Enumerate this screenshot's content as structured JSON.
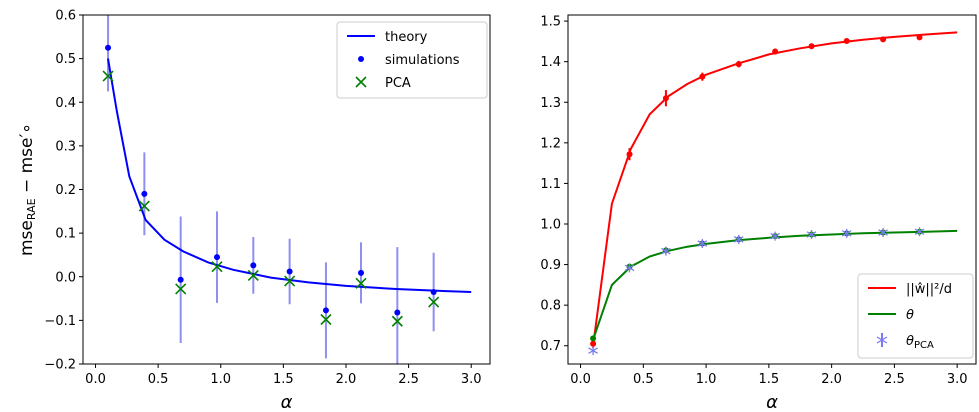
{
  "chart_data": [
    {
      "type": "line",
      "xlabel": "α",
      "ylabel": "mse_RAE − mse′∘",
      "ylabel_parts": {
        "main": "mse",
        "sub1": "RAE",
        "mid": " − mse",
        "tail": "′∘"
      },
      "xlim": [
        -0.1,
        3.15
      ],
      "ylim": [
        -0.2,
        0.6
      ],
      "xticks": [
        0.0,
        0.5,
        1.0,
        1.5,
        2.0,
        2.5,
        3.0
      ],
      "xtick_labels": [
        "0.0",
        "0.5",
        "1.0",
        "1.5",
        "2.0",
        "2.5",
        "3.0"
      ],
      "yticks": [
        -0.2,
        -0.1,
        0.0,
        0.1,
        0.2,
        0.3,
        0.4,
        0.5,
        0.6
      ],
      "ytick_labels": [
        "−0.2",
        "−0.1",
        "0.0",
        "0.1",
        "0.2",
        "0.3",
        "0.4",
        "0.5",
        "0.6"
      ],
      "legend_position": "top-right",
      "legend": [
        {
          "label": "theory",
          "marker": "line",
          "color": "#0000ff"
        },
        {
          "label": "simulations",
          "marker": "dot",
          "color": "#0000ff"
        },
        {
          "label": "PCA",
          "marker": "x",
          "color": "#008000"
        }
      ],
      "series": [
        {
          "name": "theory",
          "kind": "line",
          "color": "#0000ff",
          "x": [
            0.1,
            0.17,
            0.27,
            0.4,
            0.55,
            0.7,
            0.9,
            1.1,
            1.4,
            1.7,
            2.0,
            2.4,
            2.8,
            3.0
          ],
          "y": [
            0.5,
            0.38,
            0.23,
            0.13,
            0.085,
            0.058,
            0.033,
            0.016,
            -0.002,
            -0.013,
            -0.021,
            -0.028,
            -0.033,
            -0.035
          ]
        },
        {
          "name": "simulations",
          "kind": "points",
          "color": "#0000ff",
          "errorbar_color": "#7b7bef",
          "x": [
            0.1,
            0.39,
            0.68,
            0.97,
            1.26,
            1.55,
            1.84,
            2.12,
            2.41,
            2.7
          ],
          "y": [
            0.525,
            0.19,
            -0.007,
            0.045,
            0.026,
            0.012,
            -0.077,
            0.009,
            -0.082,
            -0.035
          ],
          "err": [
            0.1,
            0.095,
            0.145,
            0.105,
            0.065,
            0.075,
            0.11,
            0.07,
            0.15,
            0.09
          ]
        },
        {
          "name": "PCA",
          "kind": "x",
          "color": "#008000",
          "x": [
            0.1,
            0.39,
            0.68,
            0.97,
            1.26,
            1.55,
            1.84,
            2.12,
            2.41,
            2.7
          ],
          "y": [
            0.46,
            0.162,
            -0.028,
            0.023,
            0.003,
            -0.01,
            -0.098,
            -0.015,
            -0.102,
            -0.058
          ]
        }
      ]
    },
    {
      "type": "line",
      "xlabel": "α",
      "ylabel": "",
      "xlim": [
        -0.1,
        3.15
      ],
      "ylim": [
        0.655,
        1.515
      ],
      "xticks": [
        0.0,
        0.5,
        1.0,
        1.5,
        2.0,
        2.5,
        3.0
      ],
      "xtick_labels": [
        "0.0",
        "0.5",
        "1.0",
        "1.5",
        "2.0",
        "2.5",
        "3.0"
      ],
      "yticks": [
        0.7,
        0.8,
        0.9,
        1.0,
        1.1,
        1.2,
        1.3,
        1.4,
        1.5
      ],
      "ytick_labels": [
        "0.7",
        "0.8",
        "0.9",
        "1.0",
        "1.1",
        "1.2",
        "1.3",
        "1.4",
        "1.5"
      ],
      "legend_position": "bottom-right",
      "legend": [
        {
          "label": "||ŵ||²/d",
          "marker": "line",
          "color": "#ff0000"
        },
        {
          "label": "θ",
          "marker": "line",
          "color": "#008000"
        },
        {
          "label": "θ_PCA",
          "label_parts": {
            "main": "θ",
            "sub": "PCA"
          },
          "marker": "star",
          "color": "#7b7bef"
        }
      ],
      "series": [
        {
          "name": "||ŵ||²/d",
          "kind": "line",
          "color": "#ff0000",
          "x": [
            0.1,
            0.25,
            0.4,
            0.55,
            0.7,
            0.85,
            1.0,
            1.25,
            1.5,
            1.75,
            2.0,
            2.25,
            2.5,
            2.75,
            3.0
          ],
          "y": [
            0.7,
            1.05,
            1.185,
            1.27,
            1.315,
            1.345,
            1.368,
            1.395,
            1.418,
            1.433,
            1.445,
            1.454,
            1.461,
            1.467,
            1.472
          ]
        },
        {
          "name": "||ŵ||²/d points",
          "kind": "points",
          "color": "#ff0000",
          "errorbar_color": "#ff0000",
          "x": [
            0.1,
            0.39,
            0.68,
            0.97,
            1.26,
            1.55,
            1.84,
            2.12,
            2.41,
            2.7
          ],
          "y": [
            0.705,
            1.172,
            1.31,
            1.363,
            1.394,
            1.425,
            1.438,
            1.451,
            1.455,
            1.46
          ],
          "err": [
            0.01,
            0.015,
            0.02,
            0.01,
            0.008,
            0.007,
            0.007,
            0.005,
            0.005,
            0.005
          ]
        },
        {
          "name": "θ",
          "kind": "line",
          "color": "#008000",
          "x": [
            0.1,
            0.25,
            0.4,
            0.55,
            0.7,
            0.85,
            1.0,
            1.25,
            1.5,
            1.75,
            2.0,
            2.25,
            2.5,
            2.75,
            3.0
          ],
          "y": [
            0.715,
            0.85,
            0.895,
            0.92,
            0.934,
            0.944,
            0.951,
            0.96,
            0.966,
            0.971,
            0.974,
            0.977,
            0.979,
            0.981,
            0.983
          ]
        },
        {
          "name": "θ points",
          "kind": "points",
          "color": "#008000",
          "errorbar_color": "#008000",
          "x": [
            0.1,
            0.39,
            0.68,
            0.97,
            1.26,
            1.55,
            1.84,
            2.12,
            2.41,
            2.7
          ],
          "y": [
            0.718,
            0.895,
            0.935,
            0.952,
            0.962,
            0.97,
            0.974,
            0.977,
            0.979,
            0.981
          ],
          "err": [
            0.005,
            0.005,
            0.005,
            0.004,
            0.004,
            0.003,
            0.003,
            0.003,
            0.003,
            0.003
          ]
        },
        {
          "name": "θ_PCA",
          "kind": "star",
          "color": "#7b7bef",
          "x": [
            0.1,
            0.39,
            0.68,
            0.97,
            1.26,
            1.55,
            1.84,
            2.12,
            2.41,
            2.7
          ],
          "y": [
            0.688,
            0.892,
            0.933,
            0.952,
            0.962,
            0.97,
            0.974,
            0.977,
            0.979,
            0.981
          ]
        }
      ]
    }
  ]
}
